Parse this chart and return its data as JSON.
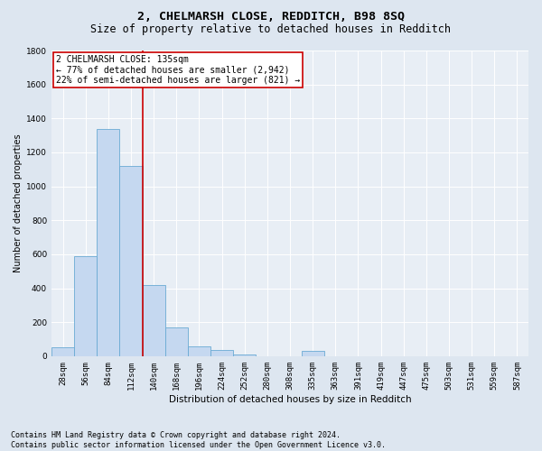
{
  "title": "2, CHELMARSH CLOSE, REDDITCH, B98 8SQ",
  "subtitle": "Size of property relative to detached houses in Redditch",
  "xlabel": "Distribution of detached houses by size in Redditch",
  "ylabel": "Number of detached properties",
  "bin_labels": [
    "28sqm",
    "56sqm",
    "84sqm",
    "112sqm",
    "140sqm",
    "168sqm",
    "196sqm",
    "224sqm",
    "252sqm",
    "280sqm",
    "308sqm",
    "335sqm",
    "363sqm",
    "391sqm",
    "419sqm",
    "447sqm",
    "475sqm",
    "503sqm",
    "531sqm",
    "559sqm",
    "587sqm"
  ],
  "bar_values": [
    50,
    590,
    1340,
    1120,
    420,
    170,
    60,
    35,
    10,
    0,
    0,
    30,
    0,
    0,
    0,
    0,
    0,
    0,
    0,
    0,
    0
  ],
  "bar_color": "#c5d8f0",
  "bar_edge_color": "#6aaad4",
  "vline_color": "#cc0000",
  "annotation_text": "2 CHELMARSH CLOSE: 135sqm\n← 77% of detached houses are smaller (2,942)\n22% of semi-detached houses are larger (821) →",
  "annotation_box_color": "#cc0000",
  "ylim": [
    0,
    1800
  ],
  "yticks": [
    0,
    200,
    400,
    600,
    800,
    1000,
    1200,
    1400,
    1600,
    1800
  ],
  "footnote": "Contains HM Land Registry data © Crown copyright and database right 2024.\nContains public sector information licensed under the Open Government Licence v3.0.",
  "background_color": "#dde6f0",
  "plot_background": "#e8eef5",
  "title_fontsize": 9.5,
  "subtitle_fontsize": 8.5,
  "xlabel_fontsize": 7.5,
  "ylabel_fontsize": 7,
  "tick_fontsize": 6.5,
  "annotation_fontsize": 7,
  "footnote_fontsize": 6
}
